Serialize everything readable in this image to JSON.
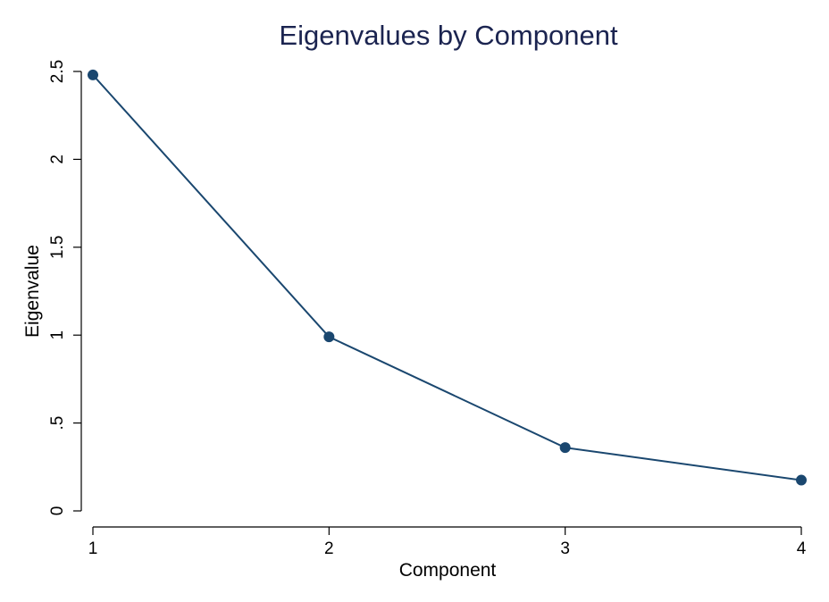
{
  "chart_data": {
    "type": "line",
    "title": "Eigenvalues by Component",
    "xlabel": "Component",
    "ylabel": "Eigenvalue",
    "x": [
      1,
      2,
      3,
      4
    ],
    "x_tick_labels": [
      "1",
      "2",
      "3",
      "4"
    ],
    "y_ticks": [
      0,
      0.5,
      1,
      1.5,
      2,
      2.5
    ],
    "y_tick_labels": [
      "0",
      ".5",
      "1",
      "1.5",
      "2",
      "2.5"
    ],
    "xlim": [
      1,
      4
    ],
    "ylim": [
      0,
      2.5
    ],
    "grid": false,
    "series": [
      {
        "values": [
          2.48,
          0.99,
          0.36,
          0.175
        ],
        "color": "#1a476f",
        "marker": "circle"
      }
    ]
  }
}
